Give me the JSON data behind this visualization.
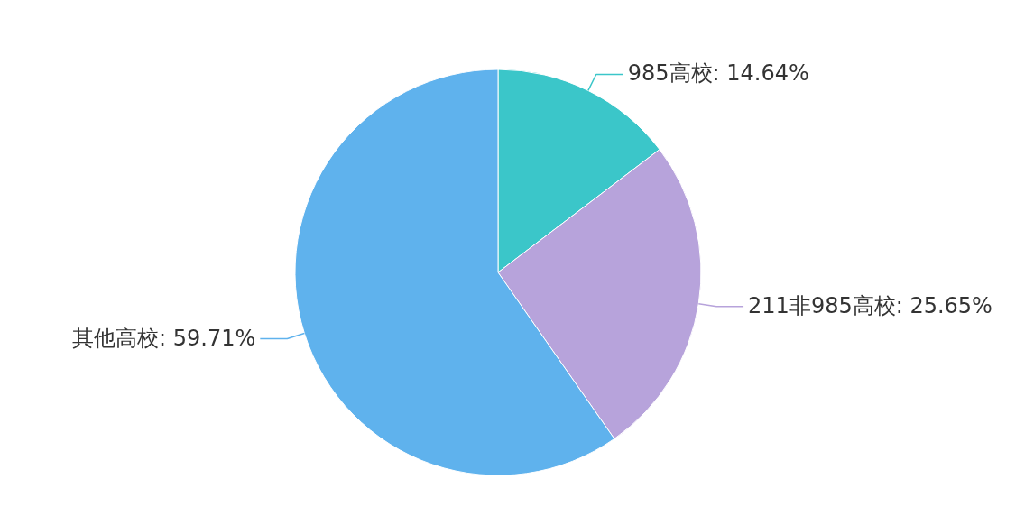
{
  "chart_data": {
    "type": "pie",
    "categories": [
      "985高校",
      "211非985高校",
      "其他高校"
    ],
    "values": [
      14.64,
      25.65,
      59.71
    ],
    "colors": [
      "#3bc6c9",
      "#b7a3db",
      "#5fb2ed"
    ],
    "value_labels": [
      "14.64%",
      "25.65%",
      "59.71%"
    ]
  }
}
